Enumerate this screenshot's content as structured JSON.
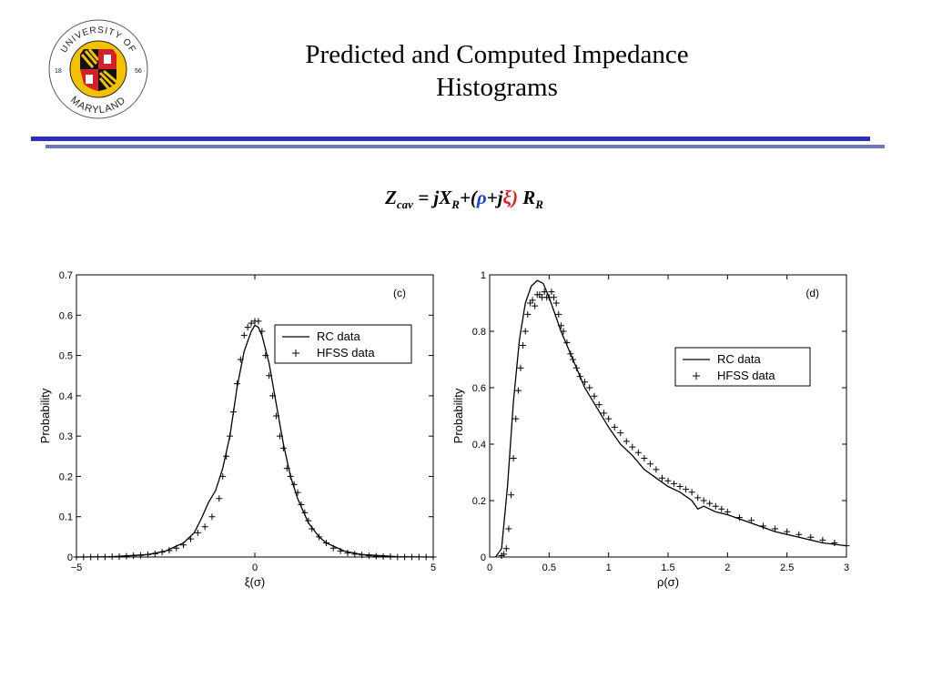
{
  "logo": {
    "top_text": "UNIVERSITY OF",
    "bottom_text": "MARYLAND",
    "year_left": "18",
    "year_right": "56"
  },
  "header": {
    "title_line1": "Predicted and Computed Impedance",
    "title_line2": "Histograms"
  },
  "formula": {
    "z": "Z",
    "cav": "cav",
    "eq": " = ",
    "jx": "jX",
    "r1": "R",
    "plus1": "+(",
    "rho": "ρ",
    "plus2": "+j",
    "xi": "ξ",
    "close": ")",
    "rr": "R",
    "r2": "R"
  },
  "colors": {
    "rule1": "#2e2ebd",
    "rule2": "#6e78b8",
    "rho": "#1a3fd6",
    "xi": "#e11b1b"
  },
  "chart_data": [
    {
      "type": "line",
      "panel": "(c)",
      "xlabel": "ξ(σ)",
      "ylabel": "Probability",
      "xlim": [
        -5,
        5
      ],
      "ylim": [
        0,
        0.7
      ],
      "xticks": [
        -5,
        0,
        5
      ],
      "xtick_labels": [
        "−5",
        "0",
        "5"
      ],
      "yticks": [
        0,
        0.1,
        0.2,
        0.3,
        0.4,
        0.5,
        0.6,
        0.7
      ],
      "ytick_labels": [
        "0",
        "0.1",
        "0.2",
        "0.3",
        "0.4",
        "0.5",
        "0.6",
        "0.7"
      ],
      "grid": false,
      "legend": "upper-right",
      "series": [
        {
          "name": "RC data",
          "style": "line",
          "x": [
            -5,
            -4,
            -3,
            -2.5,
            -2,
            -1.7,
            -1.5,
            -1.3,
            -1.1,
            -0.9,
            -0.7,
            -0.5,
            -0.3,
            -0.1,
            0,
            0.1,
            0.2,
            0.4,
            0.6,
            0.8,
            1.0,
            1.2,
            1.5,
            1.8,
            2.0,
            2.5,
            3,
            4,
            5
          ],
          "y": [
            0,
            0.001,
            0.006,
            0.015,
            0.035,
            0.06,
            0.095,
            0.135,
            0.165,
            0.22,
            0.3,
            0.42,
            0.51,
            0.56,
            0.575,
            0.57,
            0.55,
            0.48,
            0.38,
            0.28,
            0.2,
            0.145,
            0.085,
            0.05,
            0.035,
            0.015,
            0.006,
            0.001,
            0
          ]
        },
        {
          "name": "HFSS data",
          "style": "plus",
          "x": [
            -5,
            -4.8,
            -4.6,
            -4.4,
            -4.2,
            -4.0,
            -3.8,
            -3.6,
            -3.4,
            -3.2,
            -3.0,
            -2.8,
            -2.6,
            -2.4,
            -2.2,
            -2.0,
            -1.8,
            -1.6,
            -1.4,
            -1.2,
            -1.0,
            -0.9,
            -0.8,
            -0.7,
            -0.6,
            -0.5,
            -0.4,
            -0.3,
            -0.2,
            -0.1,
            0.0,
            0.1,
            0.2,
            0.3,
            0.4,
            0.5,
            0.6,
            0.7,
            0.8,
            0.9,
            1.0,
            1.1,
            1.2,
            1.3,
            1.4,
            1.5,
            1.6,
            1.8,
            2.0,
            2.2,
            2.4,
            2.6,
            2.8,
            3.0,
            3.2,
            3.4,
            3.6,
            3.8,
            4.0,
            4.2,
            4.4,
            4.6,
            4.8,
            5.0
          ],
          "y": [
            0,
            0,
            0,
            0,
            0,
            0.001,
            0.001,
            0.002,
            0.003,
            0.004,
            0.006,
            0.008,
            0.012,
            0.016,
            0.022,
            0.03,
            0.045,
            0.06,
            0.075,
            0.1,
            0.145,
            0.2,
            0.25,
            0.3,
            0.36,
            0.43,
            0.49,
            0.55,
            0.57,
            0.58,
            0.585,
            0.585,
            0.56,
            0.5,
            0.45,
            0.4,
            0.35,
            0.3,
            0.27,
            0.22,
            0.2,
            0.18,
            0.16,
            0.13,
            0.11,
            0.09,
            0.07,
            0.05,
            0.035,
            0.022,
            0.015,
            0.01,
            0.007,
            0.005,
            0.003,
            0.002,
            0.001,
            0.001,
            0,
            0,
            0,
            0,
            0,
            0
          ]
        }
      ]
    },
    {
      "type": "line",
      "panel": "(d)",
      "xlabel": "ρ(σ)",
      "ylabel": "Probability",
      "xlim": [
        0,
        3
      ],
      "ylim": [
        0,
        1
      ],
      "xticks": [
        0,
        0.5,
        1,
        1.5,
        2,
        2.5,
        3
      ],
      "xtick_labels": [
        "0",
        "0.5",
        "1",
        "1.5",
        "2",
        "2.5",
        "3"
      ],
      "yticks": [
        0,
        0.2,
        0.4,
        0.6,
        0.8,
        1
      ],
      "ytick_labels": [
        "0",
        "0.2",
        "0.4",
        "0.6",
        "0.8",
        "1"
      ],
      "grid": false,
      "legend": "middle-right",
      "series": [
        {
          "name": "RC data",
          "style": "line",
          "x": [
            0.05,
            0.1,
            0.15,
            0.2,
            0.25,
            0.3,
            0.35,
            0.4,
            0.45,
            0.5,
            0.55,
            0.6,
            0.7,
            0.8,
            0.9,
            1.0,
            1.1,
            1.2,
            1.3,
            1.4,
            1.5,
            1.6,
            1.7,
            1.75,
            1.8,
            1.9,
            2.0,
            2.2,
            2.4,
            2.6,
            2.8,
            3.0
          ],
          "y": [
            0,
            0.03,
            0.25,
            0.55,
            0.77,
            0.9,
            0.96,
            0.98,
            0.97,
            0.92,
            0.86,
            0.8,
            0.7,
            0.6,
            0.53,
            0.46,
            0.4,
            0.36,
            0.31,
            0.28,
            0.25,
            0.23,
            0.2,
            0.17,
            0.18,
            0.16,
            0.15,
            0.12,
            0.09,
            0.07,
            0.05,
            0.04
          ]
        },
        {
          "name": "HFSS data",
          "style": "plus",
          "x": [
            0.1,
            0.12,
            0.14,
            0.16,
            0.18,
            0.2,
            0.22,
            0.24,
            0.26,
            0.28,
            0.3,
            0.32,
            0.34,
            0.36,
            0.38,
            0.4,
            0.42,
            0.44,
            0.46,
            0.48,
            0.5,
            0.52,
            0.54,
            0.56,
            0.58,
            0.6,
            0.62,
            0.65,
            0.68,
            0.7,
            0.73,
            0.76,
            0.8,
            0.84,
            0.88,
            0.92,
            0.96,
            1.0,
            1.05,
            1.1,
            1.15,
            1.2,
            1.25,
            1.3,
            1.35,
            1.4,
            1.45,
            1.5,
            1.55,
            1.6,
            1.65,
            1.7,
            1.75,
            1.8,
            1.85,
            1.9,
            1.95,
            2.0,
            2.1,
            2.2,
            2.3,
            2.4,
            2.5,
            2.6,
            2.7,
            2.8,
            2.9,
            3.0
          ],
          "y": [
            0.005,
            0.01,
            0.03,
            0.1,
            0.22,
            0.35,
            0.49,
            0.59,
            0.67,
            0.75,
            0.8,
            0.86,
            0.9,
            0.91,
            0.89,
            0.93,
            0.93,
            0.92,
            0.94,
            0.92,
            0.92,
            0.94,
            0.92,
            0.9,
            0.86,
            0.82,
            0.8,
            0.76,
            0.72,
            0.7,
            0.67,
            0.64,
            0.62,
            0.6,
            0.57,
            0.54,
            0.51,
            0.49,
            0.46,
            0.44,
            0.41,
            0.39,
            0.37,
            0.35,
            0.33,
            0.31,
            0.28,
            0.27,
            0.26,
            0.25,
            0.24,
            0.23,
            0.21,
            0.2,
            0.19,
            0.18,
            0.17,
            0.16,
            0.14,
            0.13,
            0.11,
            0.1,
            0.09,
            0.08,
            0.07,
            0.06,
            0.05,
            0.04
          ]
        }
      ]
    }
  ]
}
